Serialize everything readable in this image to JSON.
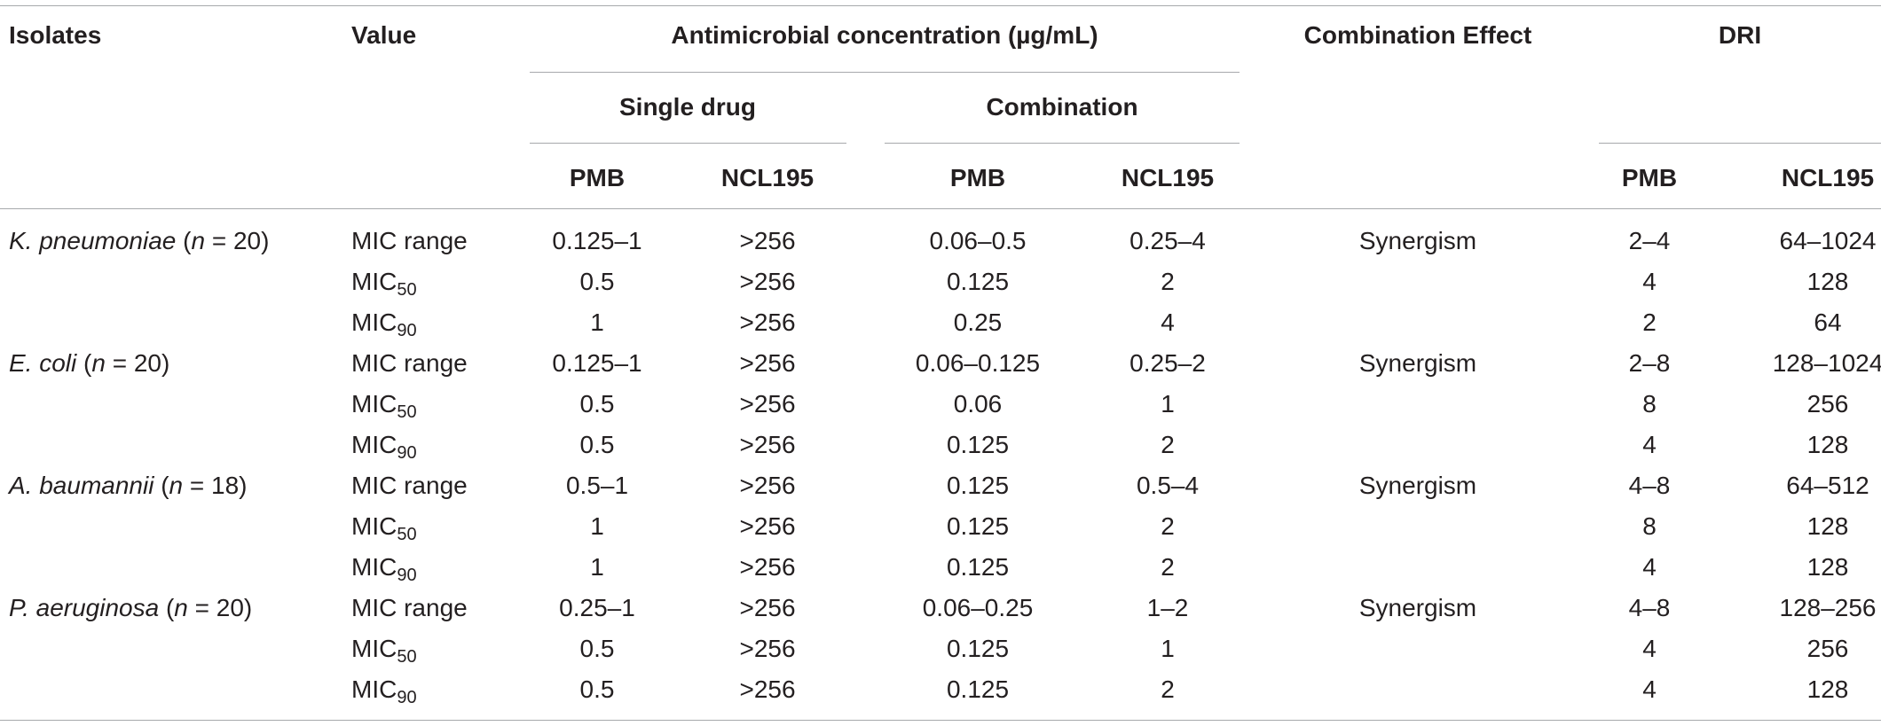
{
  "headers": {
    "isolates": "Isolates",
    "value": "Value",
    "antimicrobial": "Antimicrobial concentration (µg/mL)",
    "single_drug": "Single drug",
    "combination": "Combination",
    "combination_effect": "Combination Effect",
    "dri": "DRI",
    "pmb": "PMB",
    "ncl195": "NCL195"
  },
  "groups": [
    {
      "species": "K. pneumoniae",
      "n_prefix": " (",
      "n_label": "n",
      "n_suffix": " = 20)",
      "effect": "Synergism",
      "rows": [
        {
          "value_main": "MIC range",
          "value_sub": "",
          "single_pmb": "0.125–1",
          "single_ncl": ">256",
          "comb_pmb": "0.06–0.5",
          "comb_ncl": "0.25–4",
          "dri_pmb": "2–4",
          "dri_ncl": "64–1024"
        },
        {
          "value_main": "MIC",
          "value_sub": "50",
          "single_pmb": "0.5",
          "single_ncl": ">256",
          "comb_pmb": "0.125",
          "comb_ncl": "2",
          "dri_pmb": "4",
          "dri_ncl": "128"
        },
        {
          "value_main": "MIC",
          "value_sub": "90",
          "single_pmb": "1",
          "single_ncl": ">256",
          "comb_pmb": "0.25",
          "comb_ncl": "4",
          "dri_pmb": "2",
          "dri_ncl": "64"
        }
      ]
    },
    {
      "species": "E. coli",
      "n_prefix": " (",
      "n_label": "n",
      "n_suffix": " = 20)",
      "effect": "Synergism",
      "rows": [
        {
          "value_main": "MIC range",
          "value_sub": "",
          "single_pmb": "0.125–1",
          "single_ncl": ">256",
          "comb_pmb": "0.06–0.125",
          "comb_ncl": "0.25–2",
          "dri_pmb": "2–8",
          "dri_ncl": "128–1024"
        },
        {
          "value_main": "MIC",
          "value_sub": "50",
          "single_pmb": "0.5",
          "single_ncl": ">256",
          "comb_pmb": "0.06",
          "comb_ncl": "1",
          "dri_pmb": "8",
          "dri_ncl": "256"
        },
        {
          "value_main": "MIC",
          "value_sub": "90",
          "single_pmb": "0.5",
          "single_ncl": ">256",
          "comb_pmb": "0.125",
          "comb_ncl": "2",
          "dri_pmb": "4",
          "dri_ncl": "128"
        }
      ]
    },
    {
      "species": "A. baumannii",
      "n_prefix": " (",
      "n_label": "n",
      "n_suffix": " = 18)",
      "effect": "Synergism",
      "rows": [
        {
          "value_main": "MIC range",
          "value_sub": "",
          "single_pmb": "0.5–1",
          "single_ncl": ">256",
          "comb_pmb": "0.125",
          "comb_ncl": "0.5–4",
          "dri_pmb": "4–8",
          "dri_ncl": "64–512"
        },
        {
          "value_main": "MIC",
          "value_sub": "50",
          "single_pmb": "1",
          "single_ncl": ">256",
          "comb_pmb": "0.125",
          "comb_ncl": "2",
          "dri_pmb": "8",
          "dri_ncl": "128"
        },
        {
          "value_main": "MIC",
          "value_sub": "90",
          "single_pmb": "1",
          "single_ncl": ">256",
          "comb_pmb": "0.125",
          "comb_ncl": "2",
          "dri_pmb": "4",
          "dri_ncl": "128"
        }
      ]
    },
    {
      "species": "P. aeruginosa",
      "n_prefix": " (",
      "n_label": "n",
      "n_suffix": " = 20)",
      "effect": "Synergism",
      "rows": [
        {
          "value_main": "MIC range",
          "value_sub": "",
          "single_pmb": "0.25–1",
          "single_ncl": ">256",
          "comb_pmb": "0.06–0.25",
          "comb_ncl": "1–2",
          "dri_pmb": "4–8",
          "dri_ncl": "128–256"
        },
        {
          "value_main": "MIC",
          "value_sub": "50",
          "single_pmb": "0.5",
          "single_ncl": ">256",
          "comb_pmb": "0.125",
          "comb_ncl": "1",
          "dri_pmb": "4",
          "dri_ncl": "256"
        },
        {
          "value_main": "MIC",
          "value_sub": "90",
          "single_pmb": "0.5",
          "single_ncl": ">256",
          "comb_pmb": "0.125",
          "comb_ncl": "2",
          "dri_pmb": "4",
          "dri_ncl": "128"
        }
      ]
    }
  ]
}
